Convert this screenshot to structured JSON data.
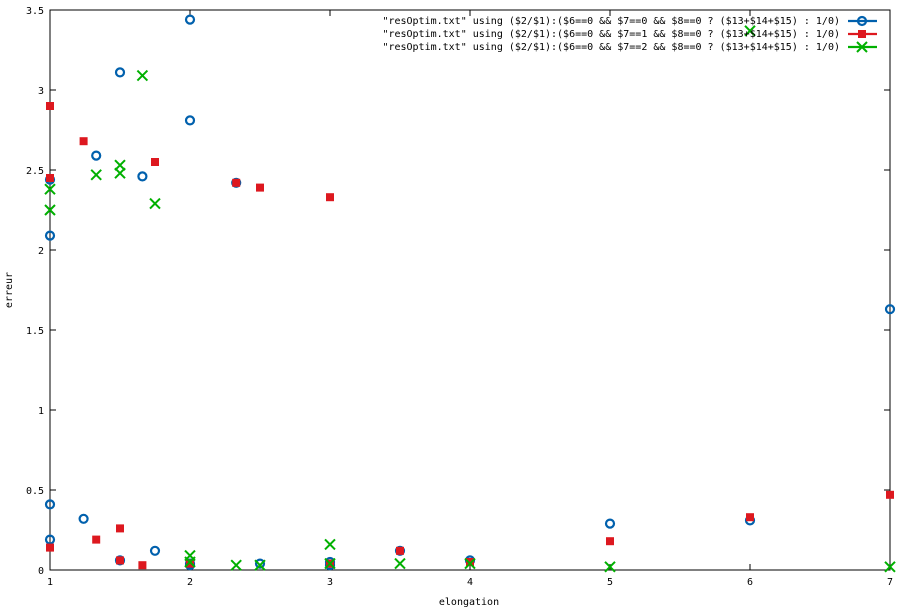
{
  "chart_data": {
    "type": "scatter",
    "xlabel": "elongation",
    "ylabel": "erreur",
    "xlim": [
      1,
      7
    ],
    "ylim": [
      0,
      3.5
    ],
    "x_ticks": [
      "1",
      "2",
      "3",
      "4",
      "5",
      "6",
      "7"
    ],
    "y_ticks": [
      "0",
      "0.5",
      "1",
      "1.5",
      "2",
      "2.5",
      "3",
      "3.5"
    ],
    "grid": false,
    "legend_position": "top-right",
    "series": [
      {
        "name": "\"resOptim.txt\" using ($2/$1):($6==0 && $7==0 && $8==0 ? ($13+$14+$15) : 1/0)",
        "marker": "circle",
        "color": "#0060ad",
        "points": [
          [
            1.0,
            2.09
          ],
          [
            1.0,
            2.44
          ],
          [
            1.0,
            0.41
          ],
          [
            1.0,
            0.19
          ],
          [
            1.24,
            0.32
          ],
          [
            1.33,
            2.59
          ],
          [
            1.5,
            3.11
          ],
          [
            1.5,
            0.06
          ],
          [
            1.66,
            2.46
          ],
          [
            1.75,
            0.12
          ],
          [
            2.0,
            3.44
          ],
          [
            2.0,
            2.81
          ],
          [
            2.0,
            0.04
          ],
          [
            2.0,
            0.03
          ],
          [
            2.33,
            2.42
          ],
          [
            2.5,
            0.04
          ],
          [
            3.0,
            0.05
          ],
          [
            3.0,
            0.03
          ],
          [
            3.5,
            0.12
          ],
          [
            4.0,
            0.06
          ],
          [
            5.0,
            0.29
          ],
          [
            6.0,
            0.31
          ],
          [
            7.0,
            1.63
          ]
        ]
      },
      {
        "name": "\"resOptim.txt\" using ($2/$1):($6==0 && $7==1 && $8==0 ? ($13+$14+$15) : 1/0)",
        "marker": "square",
        "color": "#dd181f",
        "points": [
          [
            1.0,
            2.9
          ],
          [
            1.0,
            2.45
          ],
          [
            1.0,
            0.14
          ],
          [
            1.24,
            2.68
          ],
          [
            1.33,
            0.19
          ],
          [
            1.5,
            0.26
          ],
          [
            1.5,
            0.06
          ],
          [
            1.66,
            0.03
          ],
          [
            1.75,
            2.55
          ],
          [
            2.0,
            0.04
          ],
          [
            2.33,
            2.42
          ],
          [
            2.5,
            2.39
          ],
          [
            3.0,
            2.33
          ],
          [
            3.0,
            0.04
          ],
          [
            3.5,
            0.12
          ],
          [
            4.0,
            0.05
          ],
          [
            5.0,
            0.18
          ],
          [
            6.0,
            0.33
          ],
          [
            7.0,
            0.47
          ]
        ]
      },
      {
        "name": "\"resOptim.txt\" using ($2/$1):($6==0 && $7==2 && $8==0 ? ($13+$14+$15) : 1/0)",
        "marker": "x",
        "color": "#00b000",
        "points": [
          [
            1.0,
            2.38
          ],
          [
            1.0,
            2.25
          ],
          [
            1.33,
            2.47
          ],
          [
            1.5,
            2.53
          ],
          [
            1.5,
            2.48
          ],
          [
            1.66,
            3.09
          ],
          [
            1.75,
            2.29
          ],
          [
            2.0,
            0.09
          ],
          [
            2.0,
            0.05
          ],
          [
            2.33,
            0.03
          ],
          [
            2.5,
            0.03
          ],
          [
            3.0,
            0.16
          ],
          [
            3.0,
            0.04
          ],
          [
            3.5,
            0.04
          ],
          [
            4.0,
            0.04
          ],
          [
            5.0,
            0.02
          ],
          [
            6.0,
            3.37
          ],
          [
            7.0,
            0.02
          ]
        ]
      }
    ]
  }
}
